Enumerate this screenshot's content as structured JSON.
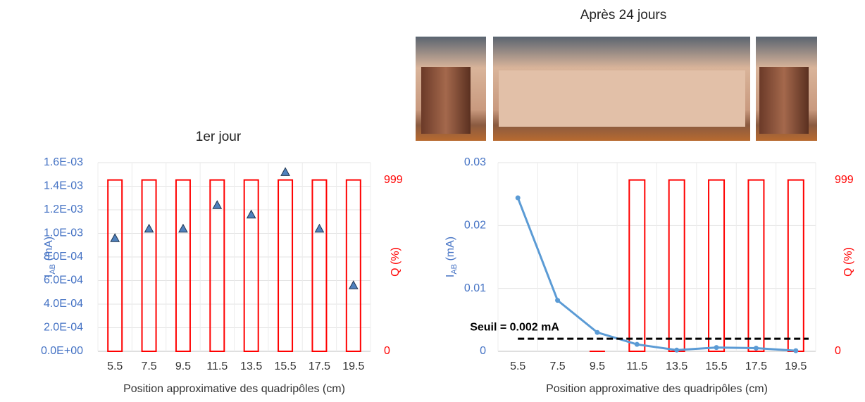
{
  "chart_data": [
    {
      "type": "combo",
      "title": "1er jour",
      "y_label": {
        "text": "I",
        "subscript": "AB",
        "unit": " (mA)"
      },
      "y2_label": "Q (%)",
      "x_label": "Position approximative des quadripôles (cm)",
      "categories": [
        "5.5",
        "7.5",
        "9.5",
        "11.5",
        "13.5",
        "15.5",
        "17.5",
        "19.5"
      ],
      "ylim": [
        0,
        0.0016
      ],
      "yticks": [
        {
          "value": 0,
          "label": "0.0E+00"
        },
        {
          "value": 0.0002,
          "label": "2.0E-04"
        },
        {
          "value": 0.0004,
          "label": "4.0E-04"
        },
        {
          "value": 0.0006,
          "label": "6.0E-04"
        },
        {
          "value": 0.0008,
          "label": "8.0E-04"
        },
        {
          "value": 0.001,
          "label": "1.0E-03"
        },
        {
          "value": 0.0012,
          "label": "1.2E-03"
        },
        {
          "value": 0.0014,
          "label": "1.4E-03"
        },
        {
          "value": 0.0016,
          "label": "1.6E-03"
        }
      ],
      "y2lim": [
        0,
        1100
      ],
      "y2ticks": [
        0,
        999
      ],
      "grid": true,
      "series": [
        {
          "type": "bar",
          "axis": "y2",
          "color": "#ff0000",
          "values": [
            999,
            999,
            999,
            999,
            999,
            999,
            999,
            999
          ]
        },
        {
          "type": "scatter",
          "marker": "triangle",
          "color": "#4f81bd",
          "values": [
            0.00096,
            0.00104,
            0.00104,
            0.00124,
            0.00116,
            0.00152,
            0.00104,
            0.00056
          ]
        }
      ]
    },
    {
      "type": "combo",
      "title": "Après 24 jours",
      "y_label": {
        "text": "I",
        "subscript": "AB",
        "unit": " (mA)"
      },
      "y2_label": "Q (%)",
      "x_label": "Position approximative des quadripôles (cm)",
      "categories": [
        "5.5",
        "7.5",
        "9.5",
        "11.5",
        "13.5",
        "15.5",
        "17.5",
        "19.5"
      ],
      "ylim": [
        0,
        0.03
      ],
      "yticks": [
        0,
        0.01,
        0.02,
        0.03
      ],
      "y2lim": [
        0,
        1100
      ],
      "y2ticks": [
        0,
        999
      ],
      "grid": true,
      "series": [
        {
          "type": "bar",
          "axis": "y2",
          "color": "#ff0000",
          "values": [
            null,
            null,
            0,
            999,
            999,
            999,
            999,
            999
          ]
        },
        {
          "type": "line",
          "color": "#5b9bd5",
          "values": [
            0.0244,
            0.0081,
            0.003,
            0.0011,
            0.0002,
            0.0006,
            0.0005,
            0.0001
          ]
        }
      ],
      "threshold": {
        "label": "Seuil = 0.002 mA",
        "value": 0.002,
        "color": "#000000"
      }
    }
  ]
}
